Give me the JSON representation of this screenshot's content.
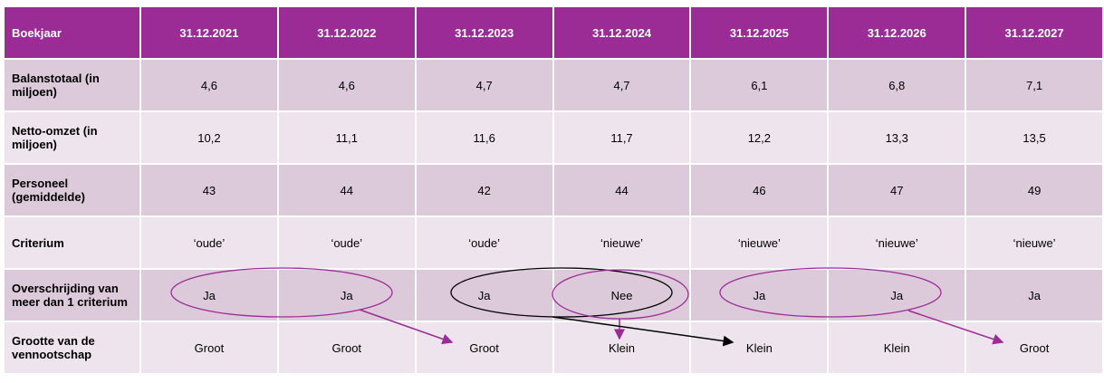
{
  "header": [
    "Boekjaar",
    "31.12.2021",
    "31.12.2022",
    "31.12.2023",
    "31.12.2024",
    "31.12.2025",
    "31.12.2026",
    "31.12.2027"
  ],
  "rows": [
    [
      "Balanstotaal (in miljoen)",
      "4,6",
      "4,6",
      "4,7",
      "4,7",
      "6,1",
      "6,8",
      "7,1"
    ],
    [
      "Netto-omzet (in miljoen)",
      "10,2",
      "11,1",
      "11,6",
      "11,7",
      "12,2",
      "13,3",
      "13,5"
    ],
    [
      "Personeel (gemiddelde)",
      "43",
      "44",
      "42",
      "44",
      "46",
      "47",
      "49"
    ],
    [
      "Criterium",
      "‘oude’",
      "‘oude’",
      "‘oude’",
      "‘nieuwe’",
      "‘nieuwe’",
      "‘nieuwe’",
      "‘nieuwe’"
    ],
    [
      "Overschrijding van meer dan 1 criterium",
      "Ja",
      "Ja",
      "Ja",
      "Nee",
      "Ja",
      "Ja",
      "Ja"
    ],
    [
      "Grootte van de vennootschap",
      "Groot",
      "Groot",
      "Groot",
      "Klein",
      "Klein",
      "Klein",
      "Groot"
    ]
  ]
}
